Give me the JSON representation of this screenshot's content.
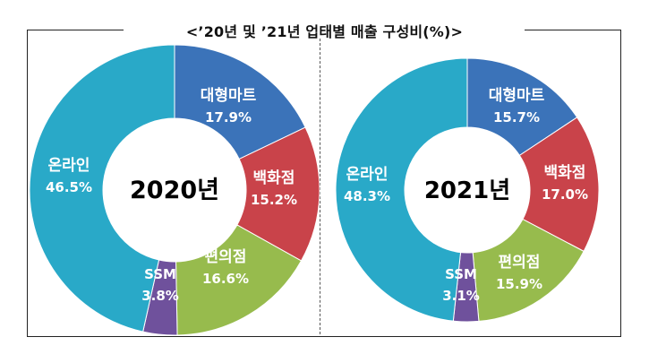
{
  "title": "<’20년 및 ’21년 업태별 매출 구성비(%)>",
  "colors": {
    "대형마트": "#3B73B9",
    "백화점": "#C9434A",
    "편의점": "#97BB4D",
    "SSM": "#6F519C",
    "온라인": "#29A9C8"
  },
  "chart_data": [
    {
      "type": "pie",
      "center_label": "2020년",
      "slices": [
        {
          "label": "대형마트",
          "value": 17.9,
          "value_label": "17.9%"
        },
        {
          "label": "백화점",
          "value": 15.2,
          "value_label": "15.2%"
        },
        {
          "label": "편의점",
          "value": 16.6,
          "value_label": "16.6%"
        },
        {
          "label": "SSM",
          "value": 3.8,
          "value_label": "3.8%"
        },
        {
          "label": "온라인",
          "value": 46.5,
          "value_label": "46.5%"
        }
      ]
    },
    {
      "type": "pie",
      "center_label": "2021년",
      "slices": [
        {
          "label": "대형마트",
          "value": 15.7,
          "value_label": "15.7%"
        },
        {
          "label": "백화점",
          "value": 17.0,
          "value_label": "17.0%"
        },
        {
          "label": "편의점",
          "value": 15.9,
          "value_label": "15.9%"
        },
        {
          "label": "SSM",
          "value": 3.1,
          "value_label": "3.1%"
        },
        {
          "label": "온라인",
          "value": 48.3,
          "value_label": "48.3%"
        }
      ]
    }
  ]
}
